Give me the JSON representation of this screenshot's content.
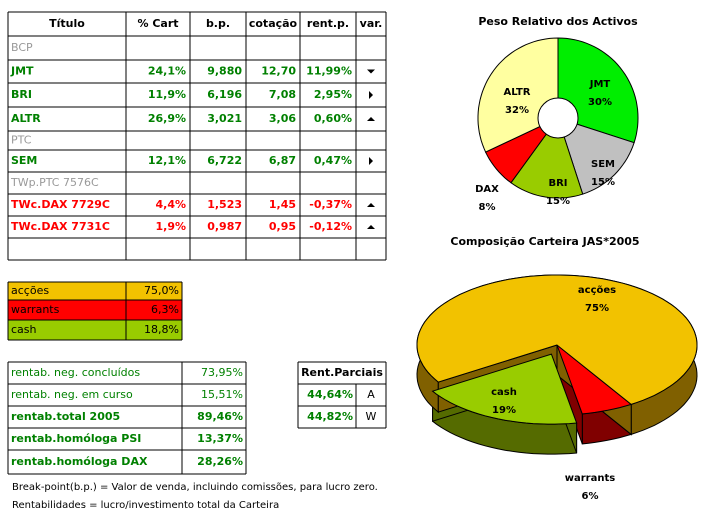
{
  "holdings": {
    "headers": [
      "Título",
      "% Cart",
      "b.p.",
      "cotação",
      "rent.p.",
      "var."
    ],
    "rows": [
      {
        "name": "BCP",
        "style": "gray"
      },
      {
        "name": "JMT",
        "cart": "24,1%",
        "bp": "9,880",
        "cot": "12,70",
        "rent": "11,99%",
        "var": "down",
        "style": "green"
      },
      {
        "name": "BRI",
        "cart": "11,9%",
        "bp": "6,196",
        "cot": "7,08",
        "rent": "2,95%",
        "var": "right",
        "style": "green"
      },
      {
        "name": "ALTR",
        "cart": "26,9%",
        "bp": "3,021",
        "cot": "3,06",
        "rent": "0,60%",
        "var": "up",
        "style": "green"
      },
      {
        "name": "PTC",
        "style": "gray"
      },
      {
        "name": "SEM",
        "cart": "12,1%",
        "bp": "6,722",
        "cot": "6,87",
        "rent": "0,47%",
        "var": "right",
        "style": "green"
      },
      {
        "name": "TWp.PTC 7576C",
        "style": "gray"
      },
      {
        "name": "TWc.DAX 7729C",
        "cart": "4,4%",
        "bp": "1,523",
        "cot": "1,45",
        "rent": "-0,37%",
        "var": "up",
        "style": "red"
      },
      {
        "name": "TWc.DAX 7731C",
        "cart": "1,9%",
        "bp": "0,987",
        "cot": "0,95",
        "rent": "-0,12%",
        "var": "up",
        "style": "red"
      }
    ]
  },
  "allocation": [
    {
      "label": "acções",
      "value": "75,0%",
      "color": "#f2c200"
    },
    {
      "label": "warrants",
      "value": "6,3%",
      "color": "#ff0000"
    },
    {
      "label": "cash",
      "value": "18,8%",
      "color": "#99cc00"
    }
  ],
  "returns": [
    {
      "label": "rentab. neg. concluídos",
      "value": "73,95%",
      "bold": false
    },
    {
      "label": "rentab. neg. em curso",
      "value": "15,51%",
      "bold": false
    },
    {
      "label": "rentab.total 2005",
      "value": "89,46%",
      "bold": true
    },
    {
      "label": "rentab.homóloga PSI",
      "value": "13,37%",
      "bold": true
    },
    {
      "label": "rentab.homóloga DAX",
      "value": "28,26%",
      "bold": true
    }
  ],
  "partial": {
    "header": "Rent.Parciais",
    "rows": [
      [
        "44,64%",
        "A"
      ],
      [
        "44,82%",
        "W"
      ]
    ]
  },
  "notes": [
    "Break-point(b.p.) = Valor de venda, incluindo comissões, para lucro zero.",
    "Rentabilidades = lucro/investimento total da Carteira"
  ],
  "chart_data": [
    {
      "type": "pie",
      "title": "Peso Relativo dos Activos",
      "donut": true,
      "categories": [
        "JMT",
        "SEM",
        "BRI",
        "DAX",
        "ALTR"
      ],
      "values": [
        30,
        15,
        15,
        8,
        32
      ],
      "value_labels": [
        "30%",
        "15%",
        "15%",
        "8%",
        "32%"
      ],
      "colors": [
        "#00ee00",
        "#c0c0c0",
        "#99cc00",
        "#ff0000",
        "#ffffa0"
      ]
    },
    {
      "type": "pie",
      "title": "Composição Carteira JAS*2005",
      "three_d": true,
      "categories": [
        "warrants",
        "cash",
        "acções"
      ],
      "values": [
        6,
        19,
        75
      ],
      "value_labels": [
        "6%",
        "19%",
        "75%"
      ],
      "exploded": [
        false,
        true,
        false
      ],
      "colors": [
        "#ff0000",
        "#99cc00",
        "#f2c200"
      ],
      "depth_colors": [
        "#800000",
        "#556b00",
        "#806000"
      ]
    }
  ]
}
